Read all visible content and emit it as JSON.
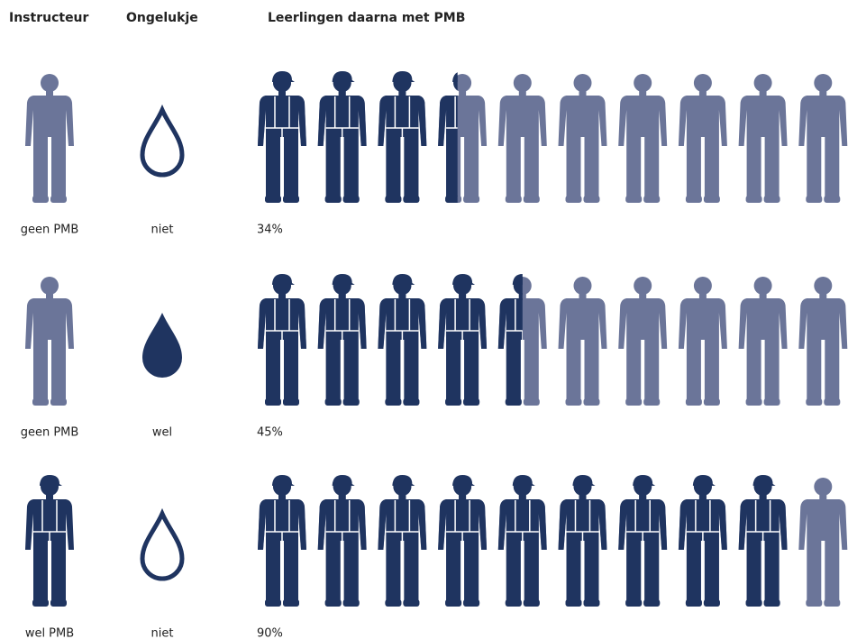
{
  "chart_data": {
    "type": "pictogram",
    "headers": [
      "Instructeur",
      "Ongelukje",
      "Leerlingen daarna met PMB"
    ],
    "instructor": {
      "labels": [
        "geen PMB",
        "geen PMB",
        "wel PMB"
      ],
      "colors": [
        "#6b7599",
        "#6b7599",
        "#1f3460"
      ]
    },
    "accident": {
      "labels": [
        "niet",
        "wel",
        "niet"
      ],
      "filled": [
        false,
        true,
        false
      ]
    },
    "values": [
      34,
      45,
      90
    ],
    "value_labels": [
      "34%",
      "45%",
      "90%"
    ],
    "ylim": [
      0,
      100
    ],
    "colors": {
      "dark": "#1f3460",
      "light": "#6b7599"
    }
  }
}
